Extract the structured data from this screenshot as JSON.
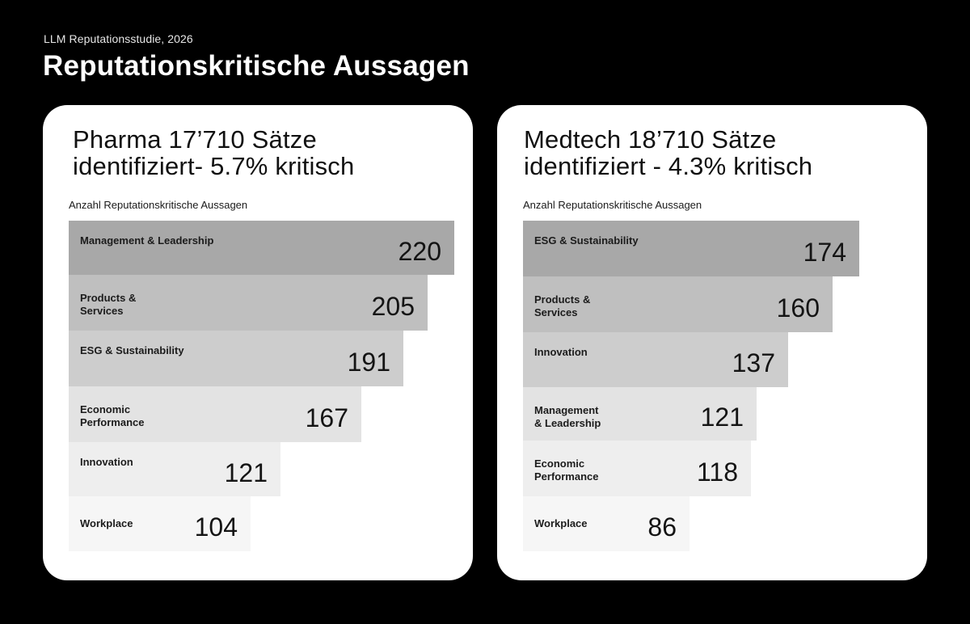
{
  "header": {
    "eyebrow": "LLM Reputationsstudie, 2026",
    "title": "Reputationskritische Aussagen"
  },
  "panels": [
    {
      "title_line1": "Pharma 17’710 Sätze",
      "title_line2": "identifiziert- 5.7% kritisch",
      "chart_label": "Anzahl Reputationskritische Aussagen"
    },
    {
      "title_line1": "Medtech 18’710 Sätze",
      "title_line2": "identifiziert - 4.3% kritisch",
      "chart_label": "Anzahl Reputationskritische Aussagen"
    }
  ],
  "chart_data": [
    {
      "type": "bar",
      "orientation": "horizontal",
      "title": "Pharma 17’710 Sätze identifiziert- 5.7% kritisch",
      "ylabel": "Anzahl Reputationskritische Aussagen",
      "categories": [
        "Management & Leadership",
        "Products &\nServices",
        "ESG & Sustainability",
        "Economic\nPerformance",
        "Innovation",
        "Workplace"
      ],
      "values": [
        220,
        205,
        191,
        167,
        121,
        104
      ],
      "colors": [
        "#a8a8a8",
        "#bfbfbf",
        "#cdcdcd",
        "#e3e3e3",
        "#eeeeee",
        "#f6f6f6"
      ],
      "grid": false,
      "legend": "none"
    },
    {
      "type": "bar",
      "orientation": "horizontal",
      "title": "Medtech 18’710 Sätze identifiziert - 4.3% kritisch",
      "ylabel": "Anzahl Reputationskritische Aussagen",
      "categories": [
        "ESG & Sustainability",
        "Products &\nServices",
        "Innovation",
        "Management\n& Leadership",
        "Economic\nPerformance",
        "Workplace"
      ],
      "values": [
        174,
        160,
        137,
        121,
        118,
        86
      ],
      "colors": [
        "#a8a8a8",
        "#bfbfbf",
        "#cdcdcd",
        "#e3e3e3",
        "#eeeeee",
        "#f6f6f6"
      ],
      "grid": false,
      "legend": "none"
    }
  ]
}
